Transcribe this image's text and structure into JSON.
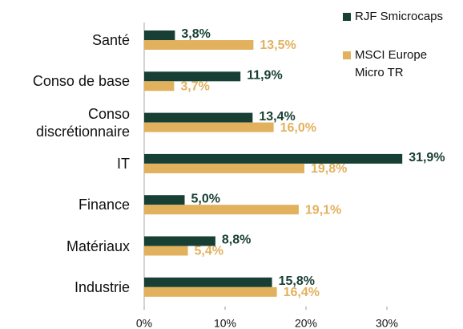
{
  "chart_data": {
    "type": "bar",
    "orientation": "horizontal",
    "categories": [
      "Santé",
      "Conso de base",
      "Conso discrétionnaire",
      "IT",
      "Finance",
      "Matériaux",
      "Industrie"
    ],
    "series": [
      {
        "name": "RJF Smicrocaps",
        "color": "#173f33",
        "values": [
          3.8,
          11.9,
          13.4,
          31.9,
          5.0,
          8.8,
          15.8
        ],
        "value_labels": [
          "3,8%",
          "11,9%",
          "13,4%",
          "31,9%",
          "5,0%",
          "8,8%",
          "15,8%"
        ]
      },
      {
        "name": "MSCI Europe Micro TR",
        "color": "#e2b15e",
        "values": [
          13.5,
          3.7,
          16.0,
          19.8,
          19.1,
          5.4,
          16.4
        ],
        "value_labels": [
          "13,5%",
          "3,7%",
          "16,0%",
          "19,8%",
          "19,1%",
          "5,4%",
          "16,4%"
        ]
      }
    ],
    "xlim": [
      0,
      35
    ],
    "xticks": [
      {
        "value": 0,
        "label": "0%"
      },
      {
        "value": 10,
        "label": "10%"
      },
      {
        "value": 20,
        "label": "20%"
      },
      {
        "value": 30,
        "label": "30%"
      }
    ],
    "legend": "top-right"
  }
}
